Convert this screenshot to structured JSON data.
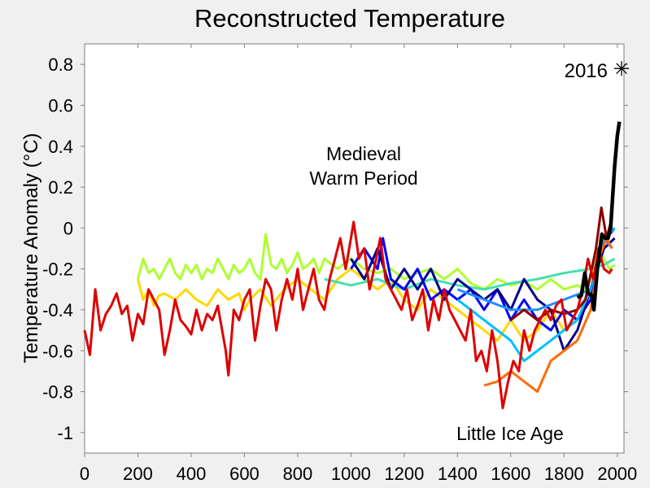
{
  "chart_data": {
    "type": "line",
    "title": "Reconstructed Temperature",
    "xlabel": "",
    "ylabel": "Temperature Anomaly (°C)",
    "xlim": [
      0,
      2025
    ],
    "ylim": [
      -1.1,
      0.9
    ],
    "xticks": [
      0,
      200,
      400,
      600,
      800,
      1000,
      1200,
      1400,
      1600,
      1800,
      2000
    ],
    "yticks": [
      -1,
      -0.8,
      -0.6,
      -0.4,
      -0.2,
      0,
      0.2,
      0.4,
      0.6,
      0.8
    ],
    "ytick_labels": [
      "-1",
      "-0.8",
      "-0.6",
      "-0.4",
      "-0.2",
      "0",
      "0.2",
      "0.4",
      "0.6",
      "0.8"
    ],
    "grid": false,
    "annotations": {
      "medieval_line1": "Medieval",
      "medieval_line2": "Warm Period",
      "little_ice_age": "Little Ice Age",
      "marker_label": "2016",
      "marker": {
        "x": 2016,
        "y": 0.78
      }
    },
    "series": [
      {
        "color": "#ADFF2F",
        "x": [
          200,
          220,
          240,
          260,
          280,
          300,
          320,
          340,
          360,
          380,
          400,
          420,
          440,
          460,
          480,
          500,
          520,
          540,
          560,
          580,
          600,
          620,
          640,
          660,
          680,
          700,
          720,
          740,
          760,
          780,
          800,
          820,
          840,
          860,
          880,
          900,
          950,
          1000,
          1050,
          1100,
          1150,
          1200,
          1250,
          1300,
          1350,
          1400,
          1450,
          1500,
          1550,
          1600,
          1650,
          1700,
          1750,
          1800,
          1850,
          1880,
          1900,
          1920,
          1950,
          1970,
          1990
        ],
        "y": [
          -0.25,
          -0.15,
          -0.22,
          -0.2,
          -0.25,
          -0.2,
          -0.15,
          -0.22,
          -0.25,
          -0.18,
          -0.22,
          -0.18,
          -0.25,
          -0.2,
          -0.22,
          -0.15,
          -0.2,
          -0.25,
          -0.18,
          -0.22,
          -0.2,
          -0.15,
          -0.22,
          -0.25,
          -0.03,
          -0.18,
          -0.2,
          -0.15,
          -0.22,
          -0.18,
          -0.12,
          -0.2,
          -0.18,
          -0.15,
          -0.22,
          -0.15,
          -0.2,
          -0.15,
          -0.2,
          -0.22,
          -0.2,
          -0.25,
          -0.22,
          -0.2,
          -0.25,
          -0.2,
          -0.27,
          -0.3,
          -0.25,
          -0.28,
          -0.26,
          -0.3,
          -0.25,
          -0.3,
          -0.28,
          -0.3,
          -0.25,
          -0.1,
          -0.15,
          -0.2,
          -0.18
        ]
      },
      {
        "color": "#FFD700",
        "x": [
          200,
          220,
          240,
          260,
          280,
          300,
          340,
          380,
          420,
          460,
          500,
          540,
          580,
          600,
          620,
          660,
          700,
          750,
          800,
          850,
          900,
          950,
          1000,
          1050,
          1100,
          1150,
          1200,
          1250,
          1300,
          1350,
          1400,
          1450,
          1500,
          1550,
          1600,
          1650,
          1700,
          1750,
          1800,
          1850,
          1900,
          1930,
          1960,
          1990
        ],
        "y": [
          -0.25,
          -0.35,
          -0.3,
          -0.38,
          -0.33,
          -0.32,
          -0.35,
          -0.3,
          -0.35,
          -0.38,
          -0.3,
          -0.35,
          -0.32,
          -0.4,
          -0.35,
          -0.3,
          -0.38,
          -0.3,
          -0.25,
          -0.3,
          -0.35,
          -0.25,
          -0.2,
          -0.25,
          -0.3,
          -0.25,
          -0.35,
          -0.4,
          -0.3,
          -0.35,
          -0.4,
          -0.45,
          -0.5,
          -0.55,
          -0.45,
          -0.55,
          -0.5,
          -0.4,
          -0.5,
          -0.45,
          -0.35,
          -0.1,
          -0.05,
          0.0
        ]
      },
      {
        "color": "#40E0B0",
        "x": [
          900,
          1000,
          1100,
          1200,
          1300,
          1400,
          1500,
          1600,
          1700,
          1800,
          1900,
          1950,
          1990
        ],
        "y": [
          -0.25,
          -0.28,
          -0.25,
          -0.3,
          -0.25,
          -0.28,
          -0.3,
          -0.27,
          -0.25,
          -0.22,
          -0.2,
          -0.18,
          -0.15
        ]
      },
      {
        "color": "#0000FF",
        "x": [
          1000,
          1050,
          1100,
          1120,
          1150,
          1200,
          1250,
          1300,
          1350,
          1400,
          1450,
          1500,
          1550,
          1600,
          1650,
          1700,
          1750,
          1800,
          1850,
          1900,
          1930,
          1960,
          1990
        ],
        "y": [
          -0.2,
          -0.1,
          -0.2,
          -0.05,
          -0.25,
          -0.3,
          -0.2,
          -0.35,
          -0.3,
          -0.35,
          -0.3,
          -0.4,
          -0.3,
          -0.45,
          -0.35,
          -0.45,
          -0.5,
          -0.4,
          -0.45,
          -0.35,
          -0.1,
          -0.05,
          0.0
        ]
      },
      {
        "color": "#00008B",
        "x": [
          1000,
          1050,
          1100,
          1150,
          1200,
          1250,
          1300,
          1350,
          1400,
          1450,
          1500,
          1550,
          1600,
          1650,
          1700,
          1750,
          1800,
          1850,
          1900,
          1950,
          1990
        ],
        "y": [
          -0.15,
          -0.25,
          -0.1,
          -0.3,
          -0.2,
          -0.3,
          -0.2,
          -0.35,
          -0.25,
          -0.3,
          -0.35,
          -0.3,
          -0.4,
          -0.25,
          -0.35,
          -0.4,
          -0.6,
          -0.5,
          -0.3,
          -0.1,
          -0.05
        ]
      },
      {
        "color": "#00BFFF",
        "x": [
          1400,
          1500,
          1600,
          1650,
          1700,
          1750,
          1800,
          1850,
          1900,
          1950,
          1990
        ],
        "y": [
          -0.35,
          -0.45,
          -0.55,
          -0.65,
          -0.6,
          -0.55,
          -0.5,
          -0.45,
          -0.3,
          -0.05,
          0.0
        ]
      },
      {
        "color": "#1E90FF",
        "x": [
          1400,
          1500,
          1600,
          1700,
          1800,
          1900,
          1950,
          1980
        ],
        "y": [
          -0.3,
          -0.35,
          -0.4,
          -0.4,
          -0.35,
          -0.3,
          -0.05,
          -0.1
        ]
      },
      {
        "color": "#FF6A00",
        "x": [
          1500,
          1550,
          1600,
          1650,
          1700,
          1750,
          1800,
          1850,
          1900,
          1930,
          1960,
          1980
        ],
        "y": [
          -0.77,
          -0.75,
          -0.7,
          -0.75,
          -0.8,
          -0.65,
          -0.6,
          -0.55,
          -0.4,
          -0.15,
          -0.05,
          -0.1
        ]
      },
      {
        "color": "#8B0000",
        "x": [
          1600,
          1650,
          1700,
          1750,
          1800,
          1850,
          1880,
          1920,
          1940,
          1960,
          1980
        ],
        "y": [
          -0.45,
          -0.4,
          -0.45,
          -0.4,
          -0.42,
          -0.4,
          -0.35,
          -0.1,
          0.1,
          -0.05,
          0.05
        ]
      },
      {
        "color": "#DD0000",
        "x": [
          0,
          20,
          40,
          60,
          80,
          100,
          120,
          140,
          160,
          180,
          200,
          220,
          240,
          260,
          280,
          300,
          320,
          340,
          360,
          380,
          400,
          420,
          440,
          460,
          480,
          500,
          530,
          540,
          560,
          580,
          600,
          620,
          640,
          660,
          680,
          700,
          720,
          740,
          760,
          780,
          800,
          820,
          840,
          860,
          880,
          900,
          920,
          940,
          960,
          980,
          1000,
          1010,
          1030,
          1050,
          1070,
          1090,
          1110,
          1130,
          1150,
          1170,
          1190,
          1210,
          1230,
          1250,
          1270,
          1290,
          1310,
          1330,
          1350,
          1370,
          1390,
          1410,
          1430,
          1450,
          1470,
          1490,
          1510,
          1530,
          1550,
          1570,
          1590,
          1610,
          1630,
          1650,
          1670,
          1690,
          1710,
          1730,
          1750,
          1770,
          1790,
          1810,
          1830,
          1850,
          1870,
          1890,
          1910,
          1930,
          1950,
          1970,
          1980
        ],
        "y": [
          -0.5,
          -0.62,
          -0.3,
          -0.5,
          -0.42,
          -0.38,
          -0.32,
          -0.42,
          -0.38,
          -0.55,
          -0.42,
          -0.47,
          -0.3,
          -0.35,
          -0.4,
          -0.62,
          -0.5,
          -0.35,
          -0.45,
          -0.48,
          -0.52,
          -0.4,
          -0.5,
          -0.42,
          -0.45,
          -0.38,
          -0.6,
          -0.72,
          -0.4,
          -0.45,
          -0.35,
          -0.3,
          -0.55,
          -0.38,
          -0.25,
          -0.3,
          -0.5,
          -0.35,
          -0.25,
          -0.35,
          -0.2,
          -0.4,
          -0.3,
          -0.2,
          -0.35,
          -0.4,
          -0.25,
          -0.15,
          -0.05,
          -0.2,
          -0.05,
          0.03,
          -0.15,
          -0.1,
          -0.3,
          -0.18,
          -0.05,
          -0.25,
          -0.3,
          -0.35,
          -0.4,
          -0.3,
          -0.45,
          -0.38,
          -0.3,
          -0.5,
          -0.35,
          -0.45,
          -0.3,
          -0.4,
          -0.45,
          -0.5,
          -0.55,
          -0.4,
          -0.65,
          -0.6,
          -0.7,
          -0.5,
          -0.65,
          -0.88,
          -0.75,
          -0.65,
          -0.7,
          -0.5,
          -0.6,
          -0.5,
          -0.45,
          -0.4,
          -0.45,
          -0.38,
          -0.35,
          -0.5,
          -0.45,
          -0.4,
          -0.3,
          -0.15,
          -0.25,
          -0.1,
          -0.2,
          -0.22,
          -0.2
        ]
      },
      {
        "color": "#000000",
        "x": [
          1850,
          1865,
          1878,
          1890,
          1905,
          1912,
          1925,
          1942,
          1955,
          1965,
          1975,
          1990,
          2000,
          2008
        ],
        "y": [
          -0.34,
          -0.33,
          -0.22,
          -0.32,
          -0.33,
          -0.4,
          -0.2,
          -0.03,
          -0.05,
          -0.05,
          0.0,
          0.3,
          0.45,
          0.52
        ]
      }
    ]
  }
}
